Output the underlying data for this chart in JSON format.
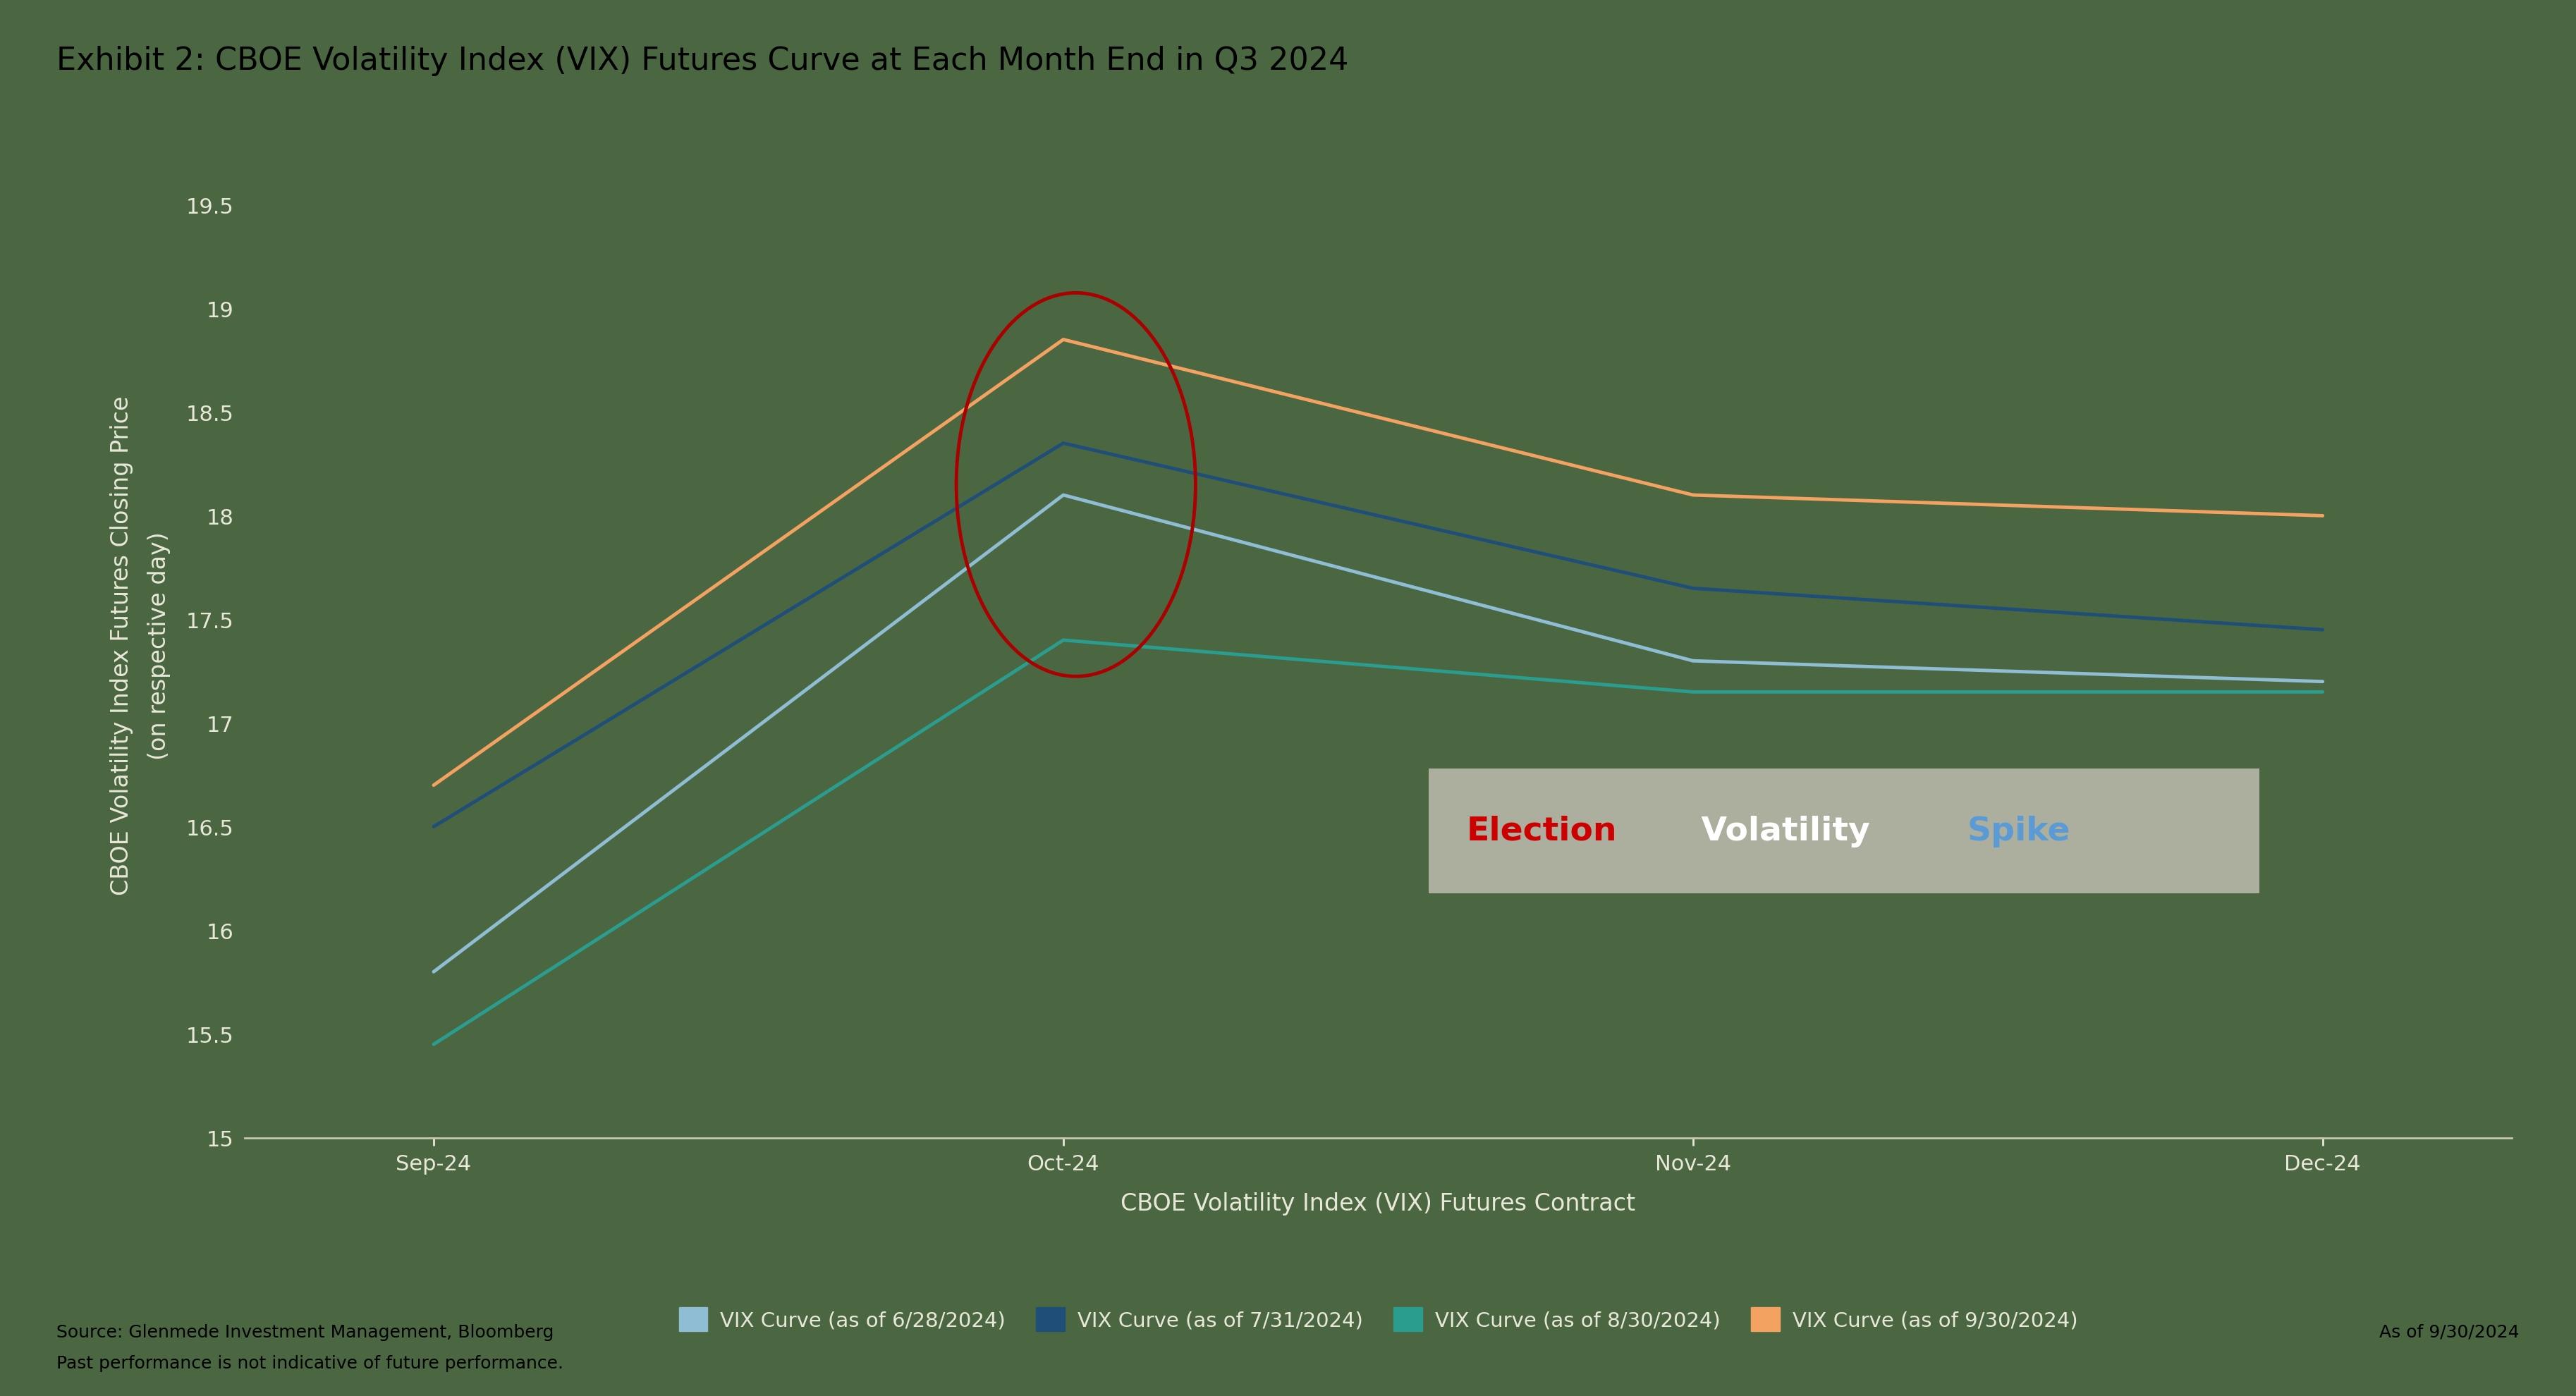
{
  "title": "Exhibit 2: CBOE Volatility Index (VIX) Futures Curve at Each Month End in Q3 2024",
  "xlabel": "CBOE Volatility Index (VIX) Futures Contract",
  "ylabel": "CBOE Volatility Index Futures Closing Price\n(on respective day)",
  "x_labels": [
    "Sep-24",
    "Oct-24",
    "Nov-24",
    "Dec-24"
  ],
  "x_values": [
    0,
    1,
    2,
    3
  ],
  "series": [
    {
      "label": "VIX Curve (as of 6/28/2024)",
      "color": "#8fbdd3",
      "linewidth": 3.5,
      "values": [
        15.8,
        18.1,
        17.3,
        17.2
      ]
    },
    {
      "label": "VIX Curve (as of 7/31/2024)",
      "color": "#1f4e79",
      "linewidth": 3.5,
      "values": [
        16.5,
        18.35,
        17.65,
        17.45
      ]
    },
    {
      "label": "VIX Curve (as of 8/30/2024)",
      "color": "#2a9d8f",
      "linewidth": 3.5,
      "values": [
        15.45,
        17.4,
        17.15,
        17.15
      ]
    },
    {
      "label": "VIX Curve (as of 9/30/2024)",
      "color": "#f4a261",
      "linewidth": 3.5,
      "values": [
        16.7,
        18.85,
        18.1,
        18.0
      ]
    }
  ],
  "ylim": [
    15.0,
    19.75
  ],
  "yticks": [
    15.0,
    15.5,
    16.0,
    16.5,
    17.0,
    17.5,
    18.0,
    18.5,
    19.0,
    19.5
  ],
  "background_color": "#4a6741",
  "text_color": "#e8e8d8",
  "axis_color": "#c8c8b0",
  "source_text1": "Source: Glenmede Investment Management, Bloomberg",
  "source_text2": "Past performance is not indicative of future performance.",
  "as_of_text": "As of 9/30/2024",
  "annotation_election_color": "#cc0000",
  "annotation_volatility_color": "#ffffff",
  "annotation_spike_color": "#5b9bd5",
  "annotation_box_color": "#b8b8a8",
  "ellipse_color": "#aa0000",
  "title_fontsize": 32,
  "axis_label_fontsize": 24,
  "tick_fontsize": 22,
  "legend_fontsize": 21,
  "source_fontsize": 18,
  "annotation_fontsize": 34
}
